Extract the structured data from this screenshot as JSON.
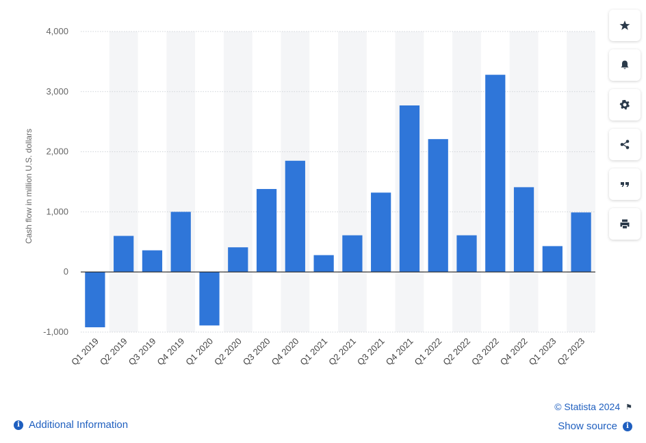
{
  "chart_data": {
    "type": "bar",
    "categories": [
      "Q1 2019",
      "Q2 2019",
      "Q3 2019",
      "Q4 2019",
      "Q1 2020",
      "Q2 2020",
      "Q3 2020",
      "Q4 2020",
      "Q1 2021",
      "Q2 2021",
      "Q3 2021",
      "Q4 2021",
      "Q1 2022",
      "Q2 2022",
      "Q3 2022",
      "Q4 2022",
      "Q1 2023",
      "Q2 2023"
    ],
    "values": [
      -920,
      600,
      360,
      1000,
      -890,
      410,
      1380,
      1850,
      280,
      610,
      1320,
      2770,
      2210,
      610,
      3280,
      1410,
      430,
      990
    ],
    "ylabel": "Cash flow in million U.S. dollars",
    "ylim": [
      -1000,
      4000
    ],
    "yticks": [
      4000,
      3000,
      2000,
      1000,
      0,
      -1000
    ],
    "ytick_labels": [
      "4,000",
      "3,000",
      "2,000",
      "1,000",
      "0",
      "-1,000"
    ],
    "bar_color": "#2f76d9",
    "grid": true
  },
  "toolbar": {
    "icons": [
      "star-icon",
      "bell-icon",
      "gear-icon",
      "share-icon",
      "quote-icon",
      "print-icon"
    ]
  },
  "footer": {
    "additional_info": "Additional Information",
    "credit": "© Statista 2024",
    "show_source": "Show source"
  },
  "colors": {
    "link": "#1f5fbf",
    "bar": "#2f76d9"
  }
}
